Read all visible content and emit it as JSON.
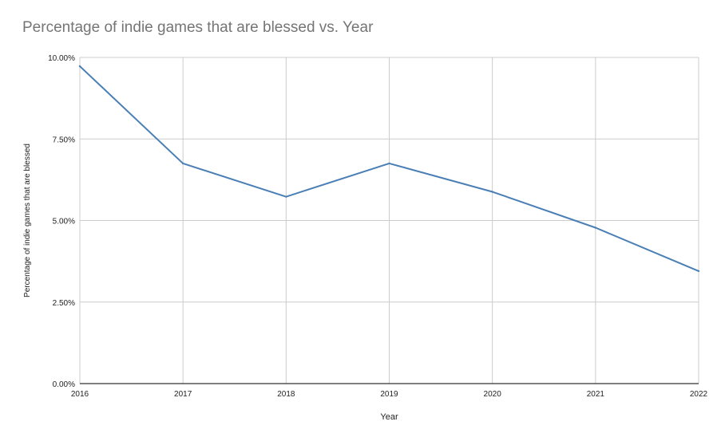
{
  "chart_data": {
    "type": "line",
    "title": "Percentage of indie games that are blessed vs. Year",
    "xlabel": "Year",
    "ylabel": "Percentage of indie games that are blessed",
    "x": [
      2016,
      2017,
      2018,
      2019,
      2020,
      2021,
      2022
    ],
    "series": [
      {
        "values": [
          9.73,
          6.75,
          5.73,
          6.75,
          5.88,
          4.78,
          3.45
        ],
        "color": "#4a7fb5"
      }
    ],
    "xlim": [
      2016,
      2022
    ],
    "ylim": [
      0,
      10
    ],
    "y_ticks": [
      0,
      2.5,
      5,
      7.5,
      10
    ],
    "y_tick_labels": [
      "0.00%",
      "2.50%",
      "5.00%",
      "7.50%",
      "10.00%"
    ],
    "x_tick_labels": [
      "2016",
      "2017",
      "2018",
      "2019",
      "2020",
      "2021",
      "2022"
    ],
    "grid": true,
    "legend": "none",
    "gridline_color": "#cccccc",
    "axis_color": "#333333"
  }
}
